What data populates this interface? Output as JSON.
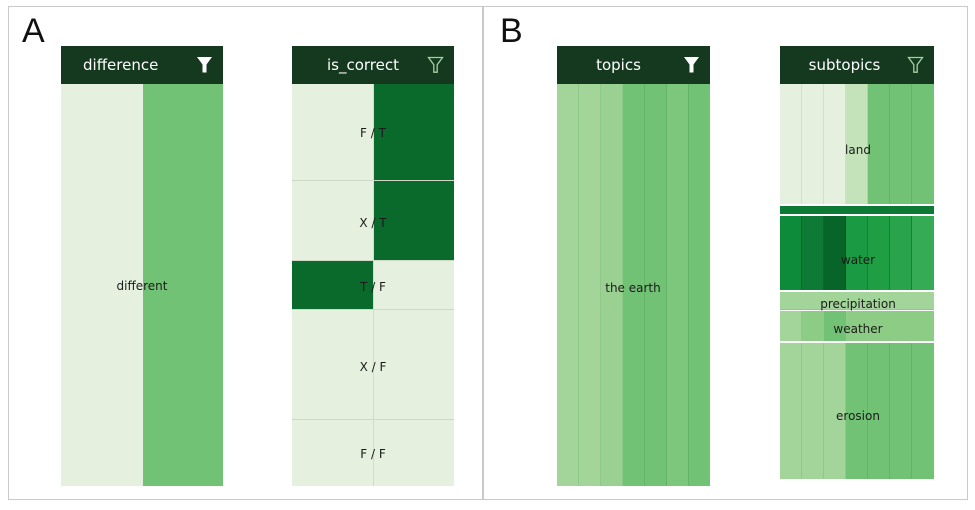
{
  "panels": {
    "a": {
      "letter": "A"
    },
    "b": {
      "letter": "B"
    }
  },
  "columns": {
    "difference": {
      "title": "difference",
      "filter": "filled-filter-icon",
      "label": "different"
    },
    "is_correct": {
      "title": "is_correct",
      "filter": "outline-filter-icon",
      "rows": [
        {
          "label": "F / T"
        },
        {
          "label": "X / T"
        },
        {
          "label": "T / F"
        },
        {
          "label": "X / F"
        },
        {
          "label": "F / F"
        }
      ]
    },
    "topics": {
      "title": "topics",
      "filter": "filled-filter-icon",
      "label": "the earth"
    },
    "subtopics": {
      "title": "subtopics",
      "filter": "outline-filter-icon",
      "rows": [
        {
          "label": "land"
        },
        {
          "label": "water"
        },
        {
          "label": "precipitation"
        },
        {
          "label": "weather"
        },
        {
          "label": "erosion"
        }
      ]
    }
  },
  "colors": {
    "header": "#15391f",
    "light": "#e6f0df",
    "medium": "#71c274",
    "dark": "#096a2c",
    "brightWater": "#1f9e44"
  }
}
